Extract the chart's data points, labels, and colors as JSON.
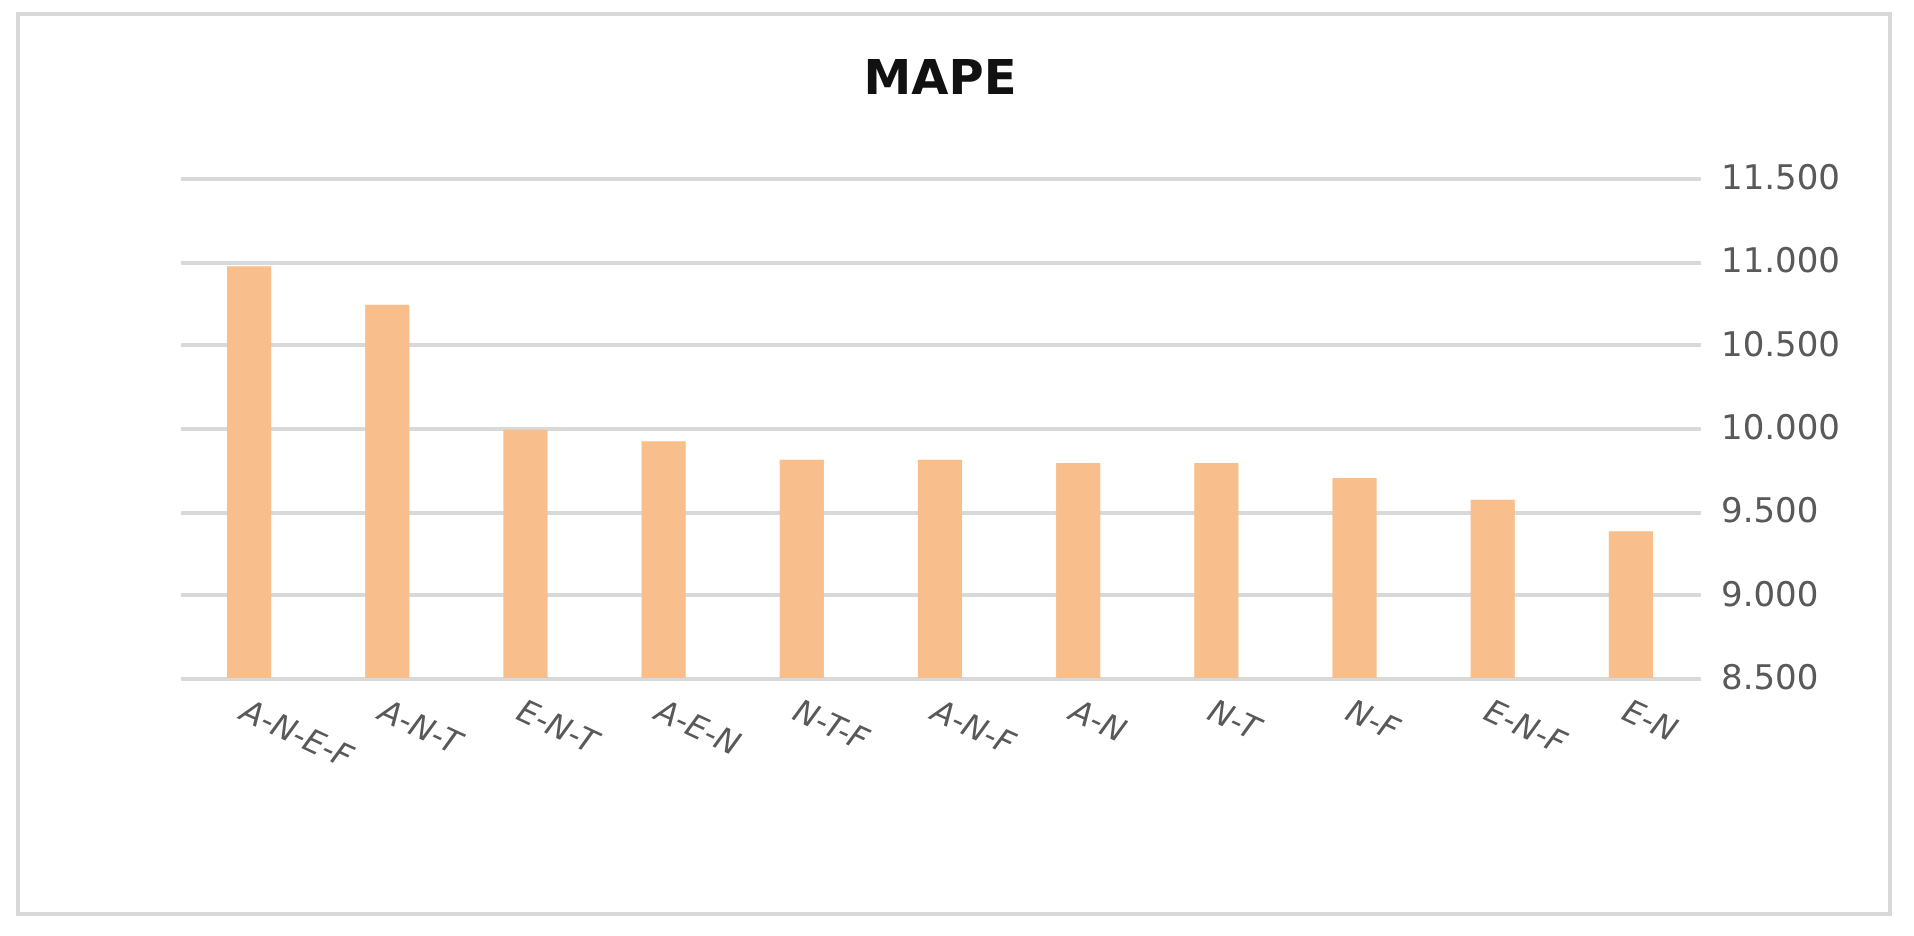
{
  "chart_data": {
    "type": "bar",
    "title": "MAPE",
    "categories": [
      "A-N-E-F",
      "A-N-T",
      "E-N-T",
      "A-E-N",
      "N-T-F",
      "A-N-F",
      "A-N",
      "N-T",
      "N-F",
      "E-N-F",
      "E-N"
    ],
    "values": [
      10.97,
      10.74,
      9.99,
      9.92,
      9.81,
      9.81,
      9.79,
      9.79,
      9.7,
      9.57,
      9.38
    ],
    "color": "#f8bf8c",
    "ylim": [
      8.5,
      11.5
    ],
    "yticks": [
      {
        "value": 8.5,
        "label": "8.500"
      },
      {
        "value": 9,
        "label": "9.000"
      },
      {
        "value": 9.5,
        "label": "9.500"
      },
      {
        "value": 10,
        "label": "10.000"
      },
      {
        "value": 10.5,
        "label": "10.500"
      },
      {
        "value": 11,
        "label": "11.000"
      },
      {
        "value": 11.5,
        "label": "11.500"
      }
    ],
    "grid": "y"
  }
}
